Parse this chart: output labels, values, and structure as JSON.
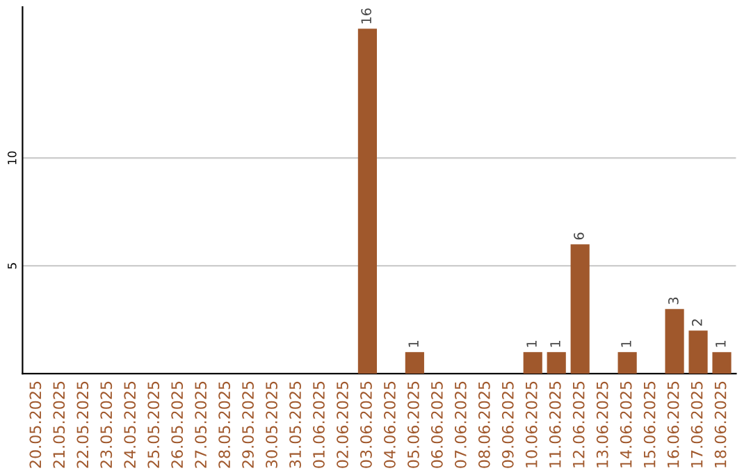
{
  "chart_data": {
    "type": "bar",
    "categories": [
      "20.05.2025",
      "21.05.2025",
      "22.05.2025",
      "23.05.2025",
      "24.05.2025",
      "25.05.2025",
      "26.05.2025",
      "27.05.2025",
      "28.05.2025",
      "29.05.2025",
      "30.05.2025",
      "31.05.2025",
      "01.06.2025",
      "02.06.2025",
      "03.06.2025",
      "04.06.2025",
      "05.06.2025",
      "06.06.2025",
      "07.06.2025",
      "08.06.2025",
      "09.06.2025",
      "10.06.2025",
      "11.06.2025",
      "12.06.2025",
      "13.06.2025",
      "14.06.2025",
      "15.06.2025",
      "16.06.2025",
      "17.06.2025",
      "18.06.2025"
    ],
    "values": [
      0,
      0,
      0,
      0,
      0,
      0,
      0,
      0,
      0,
      0,
      0,
      0,
      0,
      0,
      16,
      0,
      1,
      0,
      0,
      0,
      0,
      1,
      1,
      6,
      0,
      1,
      0,
      3,
      2,
      1
    ],
    "value_labels": [
      null,
      null,
      null,
      null,
      null,
      null,
      null,
      null,
      null,
      null,
      null,
      null,
      null,
      null,
      "16",
      null,
      "1",
      null,
      null,
      null,
      null,
      "1",
      "1",
      "6",
      null,
      "1",
      null,
      "3",
      "2",
      "1"
    ],
    "color": "#a0582c",
    "ylim": [
      0,
      17
    ],
    "yticks": [
      5,
      10
    ],
    "grid": "y"
  }
}
